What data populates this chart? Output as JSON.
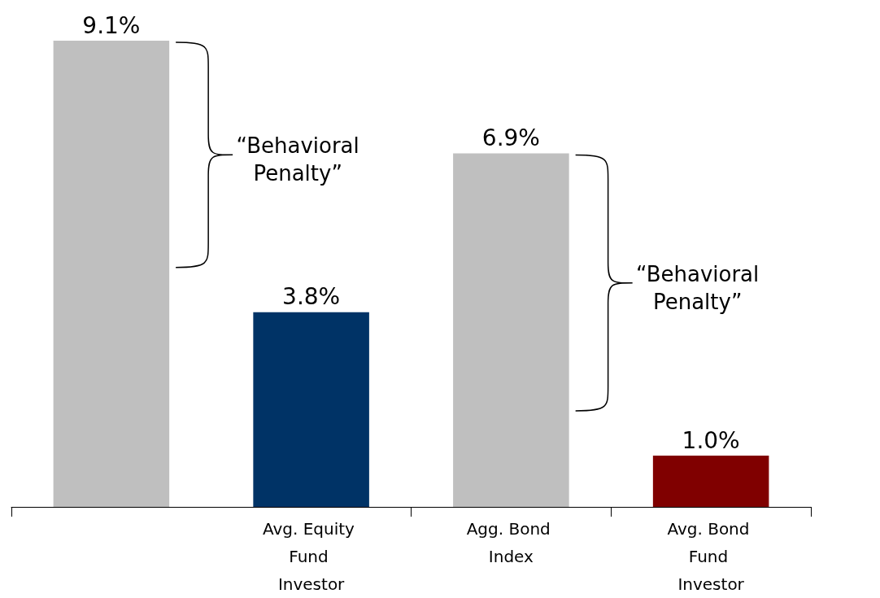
{
  "chart_data": {
    "type": "bar",
    "categories": [
      null,
      "Avg. Equity Fund Investor",
      "Agg. Bond Index",
      "Avg. Bond Fund Investor"
    ],
    "values": [
      9.1,
      3.8,
      6.9,
      1.0
    ],
    "colors": [
      "#bfbfbf",
      "#003366",
      "#bfbfbf",
      "#800000"
    ],
    "value_labels": [
      "9.1%",
      "3.8%",
      "6.9%",
      "1.0%"
    ],
    "annotations": [
      "“Behavioral Penalty”",
      "“Behavioral Penalty”"
    ],
    "grid": false
  }
}
